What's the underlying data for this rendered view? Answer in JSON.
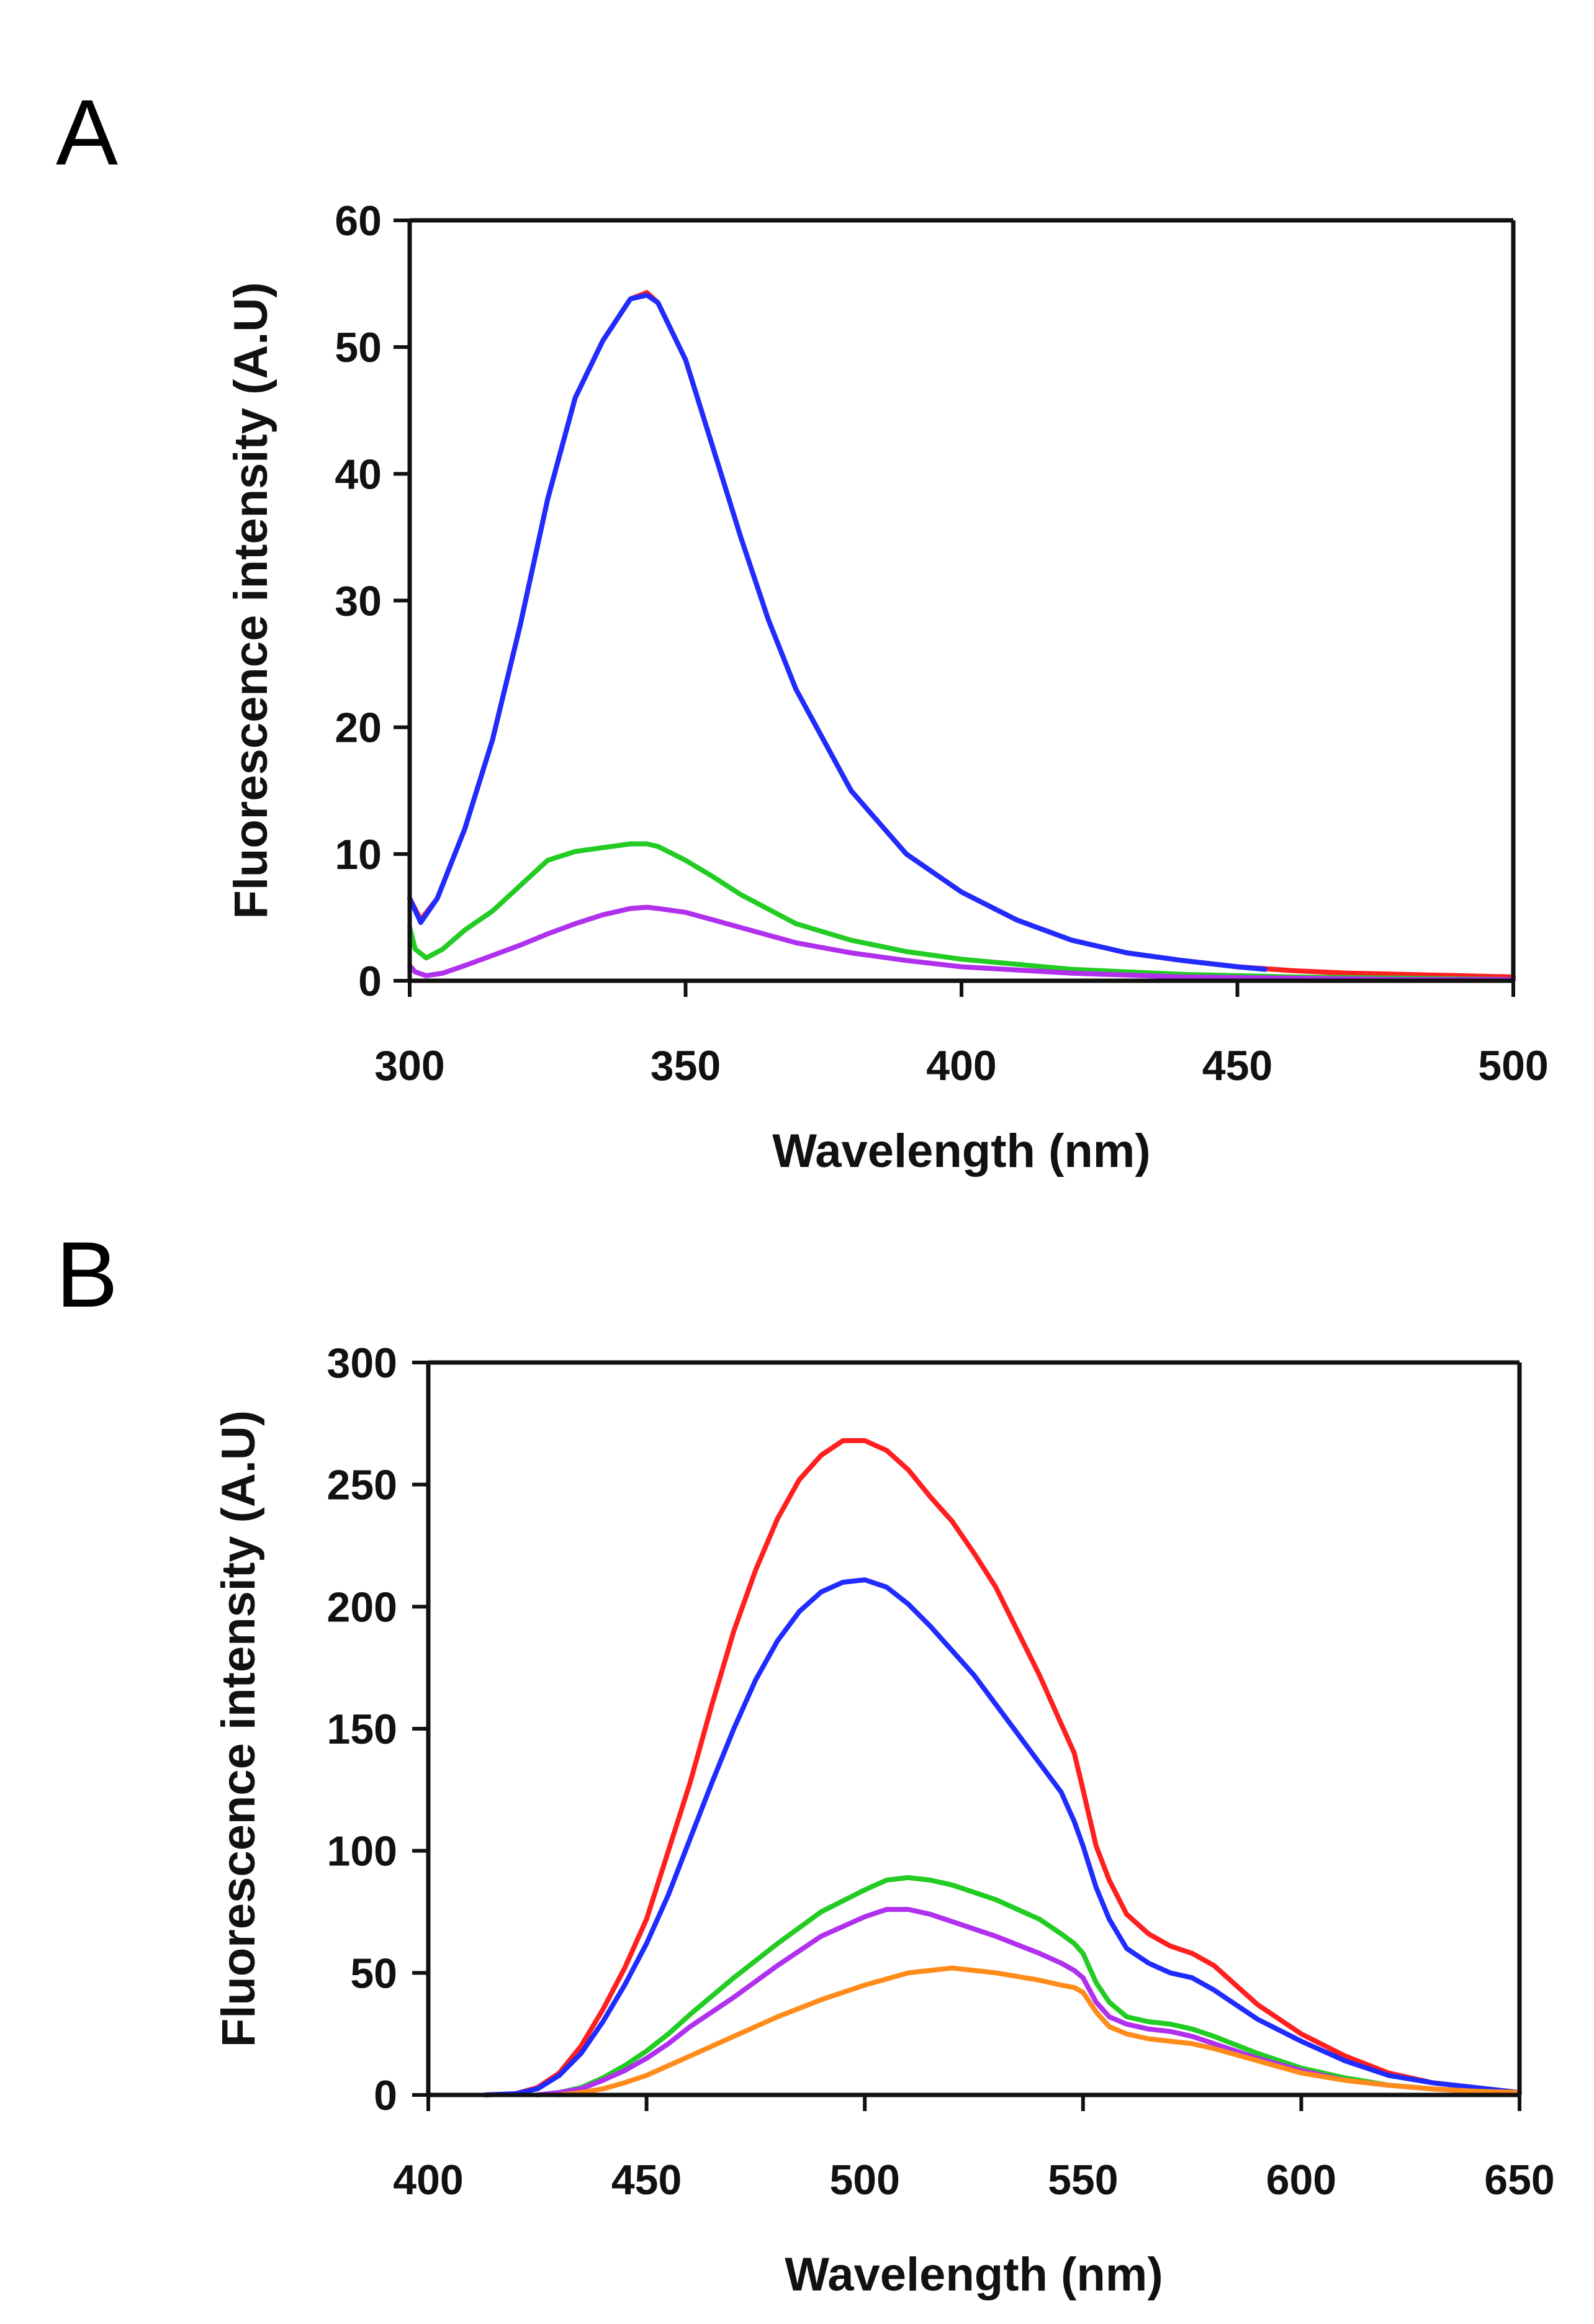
{
  "chart_data": [
    {
      "panel": "A",
      "type": "line",
      "title": "",
      "xlabel": "Wavelength (nm)",
      "ylabel": "Fluorescence intensity (A.U)",
      "xlim": [
        300,
        500
      ],
      "ylim": [
        0,
        60
      ],
      "xticks": [
        300,
        350,
        400,
        450,
        500
      ],
      "yticks": [
        0,
        10,
        20,
        30,
        40,
        50,
        60
      ],
      "grid": false,
      "legend": "none",
      "series": [
        {
          "name": "red",
          "color": "#ff1f1f",
          "x": [
            300,
            302,
            305,
            310,
            315,
            320,
            325,
            330,
            335,
            340,
            343,
            345,
            350,
            355,
            360,
            365,
            370,
            380,
            390,
            400,
            410,
            420,
            430,
            440,
            450,
            460,
            470,
            480,
            490,
            500
          ],
          "y": [
            6.5,
            4.8,
            6.5,
            12,
            19,
            28,
            38,
            46,
            50.5,
            53.8,
            54.3,
            53.5,
            49,
            42,
            35,
            28.5,
            23,
            15,
            10,
            7,
            4.8,
            3.2,
            2.2,
            1.6,
            1.1,
            0.8,
            0.6,
            0.5,
            0.4,
            0.3
          ]
        },
        {
          "name": "blue",
          "color": "#1f2bff",
          "x": [
            300,
            302,
            305,
            310,
            315,
            320,
            325,
            330,
            335,
            340,
            343,
            345,
            350,
            355,
            360,
            365,
            370,
            380,
            390,
            400,
            410,
            420,
            430,
            440,
            450,
            455
          ],
          "y": [
            6.5,
            4.6,
            6.5,
            12,
            19,
            28,
            38,
            46,
            50.5,
            53.8,
            54.1,
            53.5,
            49,
            42,
            35,
            28.5,
            23,
            15,
            10,
            7,
            4.8,
            3.2,
            2.2,
            1.6,
            1.1,
            0.9
          ]
        },
        {
          "name": "green",
          "color": "#22cc22",
          "x": [
            300,
            301,
            303,
            306,
            310,
            315,
            320,
            325,
            330,
            335,
            340,
            343,
            345,
            350,
            355,
            360,
            370,
            380,
            390,
            400,
            420,
            440,
            460,
            480,
            500
          ],
          "y": [
            4.2,
            2.5,
            1.8,
            2.5,
            4,
            5.5,
            7.5,
            9.5,
            10.2,
            10.5,
            10.8,
            10.8,
            10.6,
            9.5,
            8.2,
            6.8,
            4.5,
            3.2,
            2.3,
            1.7,
            0.9,
            0.5,
            0.3,
            0.2,
            0.1
          ]
        },
        {
          "name": "purple",
          "color": "#b030ee",
          "x": [
            300,
            301,
            303,
            306,
            310,
            315,
            320,
            325,
            330,
            335,
            340,
            343,
            345,
            350,
            355,
            360,
            370,
            380,
            390,
            400,
            420,
            440,
            460,
            480,
            500
          ],
          "y": [
            1.2,
            0.7,
            0.4,
            0.6,
            1.2,
            2,
            2.8,
            3.7,
            4.5,
            5.2,
            5.7,
            5.8,
            5.7,
            5.4,
            4.8,
            4.2,
            3,
            2.2,
            1.6,
            1.1,
            0.6,
            0.3,
            0.2,
            0.1,
            0.1
          ]
        }
      ]
    },
    {
      "panel": "B",
      "type": "line",
      "title": "",
      "xlabel": "Wavelength (nm)",
      "ylabel": "Fluorescence intensity (A.U)",
      "xlim": [
        400,
        650
      ],
      "ylim": [
        0,
        300
      ],
      "xticks": [
        400,
        450,
        500,
        550,
        600,
        650
      ],
      "yticks": [
        0,
        50,
        100,
        150,
        200,
        250,
        300
      ],
      "grid": false,
      "legend": "none",
      "series": [
        {
          "name": "red",
          "color": "#ff1f1f",
          "x": [
            413,
            420,
            425,
            430,
            435,
            440,
            445,
            450,
            455,
            460,
            465,
            470,
            475,
            480,
            485,
            490,
            495,
            500,
            505,
            510,
            515,
            520,
            525,
            530,
            535,
            540,
            545,
            548,
            550,
            553,
            556,
            560,
            565,
            570,
            575,
            580,
            585,
            590,
            600,
            610,
            620,
            630,
            640,
            650
          ],
          "y": [
            0,
            0.5,
            3,
            9,
            20,
            35,
            52,
            72,
            100,
            128,
            160,
            190,
            215,
            236,
            252,
            262,
            268,
            268,
            264,
            256,
            245,
            235,
            222,
            208,
            190,
            172,
            152,
            140,
            125,
            102,
            88,
            74,
            66,
            61,
            58,
            53,
            45,
            37,
            25,
            16,
            9,
            5,
            3,
            1
          ]
        },
        {
          "name": "blue",
          "color": "#1f2bff",
          "x": [
            413,
            420,
            425,
            430,
            435,
            440,
            445,
            450,
            455,
            460,
            465,
            470,
            475,
            480,
            485,
            490,
            495,
            500,
            505,
            510,
            515,
            520,
            525,
            530,
            535,
            540,
            545,
            548,
            550,
            553,
            556,
            560,
            565,
            570,
            575,
            580,
            585,
            590,
            600,
            610,
            620,
            630,
            640,
            650
          ],
          "y": [
            0,
            0.5,
            2.5,
            8,
            17,
            30,
            45,
            62,
            82,
            105,
            128,
            150,
            170,
            186,
            198,
            206,
            210,
            211,
            208,
            201,
            192,
            182,
            172,
            160,
            148,
            136,
            124,
            112,
            102,
            85,
            72,
            60,
            54,
            50,
            48,
            43,
            37,
            31,
            22,
            14,
            8,
            5,
            3,
            1
          ]
        },
        {
          "name": "green",
          "color": "#22cc22",
          "x": [
            425,
            430,
            435,
            440,
            445,
            450,
            455,
            460,
            470,
            480,
            490,
            500,
            505,
            510,
            515,
            520,
            530,
            540,
            545,
            548,
            550,
            553,
            556,
            560,
            565,
            570,
            575,
            580,
            590,
            600,
            610,
            620,
            630,
            640,
            650
          ],
          "y": [
            0,
            1,
            3,
            7,
            12,
            18,
            25,
            33,
            48,
            62,
            75,
            84,
            88,
            89,
            88,
            86,
            80,
            72,
            66,
            62,
            58,
            46,
            38,
            32,
            30,
            29,
            27,
            24,
            17,
            11,
            7,
            4,
            2.5,
            1.5,
            1
          ]
        },
        {
          "name": "purple",
          "color": "#b030ee",
          "x": [
            425,
            430,
            435,
            440,
            445,
            450,
            455,
            460,
            470,
            480,
            490,
            500,
            505,
            510,
            515,
            520,
            530,
            540,
            545,
            548,
            550,
            553,
            556,
            560,
            565,
            570,
            575,
            580,
            590,
            600,
            610,
            620,
            630,
            640,
            650
          ],
          "y": [
            0,
            1,
            2.5,
            6,
            10,
            15,
            21,
            28,
            40,
            53,
            65,
            73,
            76,
            76,
            74,
            71,
            65,
            58,
            54,
            51,
            48,
            38,
            32,
            29,
            27,
            26,
            24,
            21,
            15,
            10,
            6,
            4,
            2.5,
            1.5,
            1
          ]
        },
        {
          "name": "orange",
          "color": "#ff8c1a",
          "x": [
            430,
            435,
            440,
            445,
            450,
            455,
            460,
            470,
            480,
            490,
            500,
            510,
            515,
            520,
            525,
            530,
            540,
            545,
            548,
            550,
            553,
            556,
            560,
            565,
            570,
            575,
            580,
            590,
            600,
            610,
            620,
            630,
            640,
            650
          ],
          "y": [
            0,
            1,
            2.5,
            5,
            8,
            12,
            16,
            24,
            32,
            39,
            45,
            50,
            51,
            52,
            51,
            50,
            47,
            45,
            44,
            42,
            34,
            28,
            25,
            23,
            22,
            21,
            19,
            14,
            9,
            6,
            4,
            2.5,
            1.5,
            1
          ]
        }
      ]
    }
  ]
}
